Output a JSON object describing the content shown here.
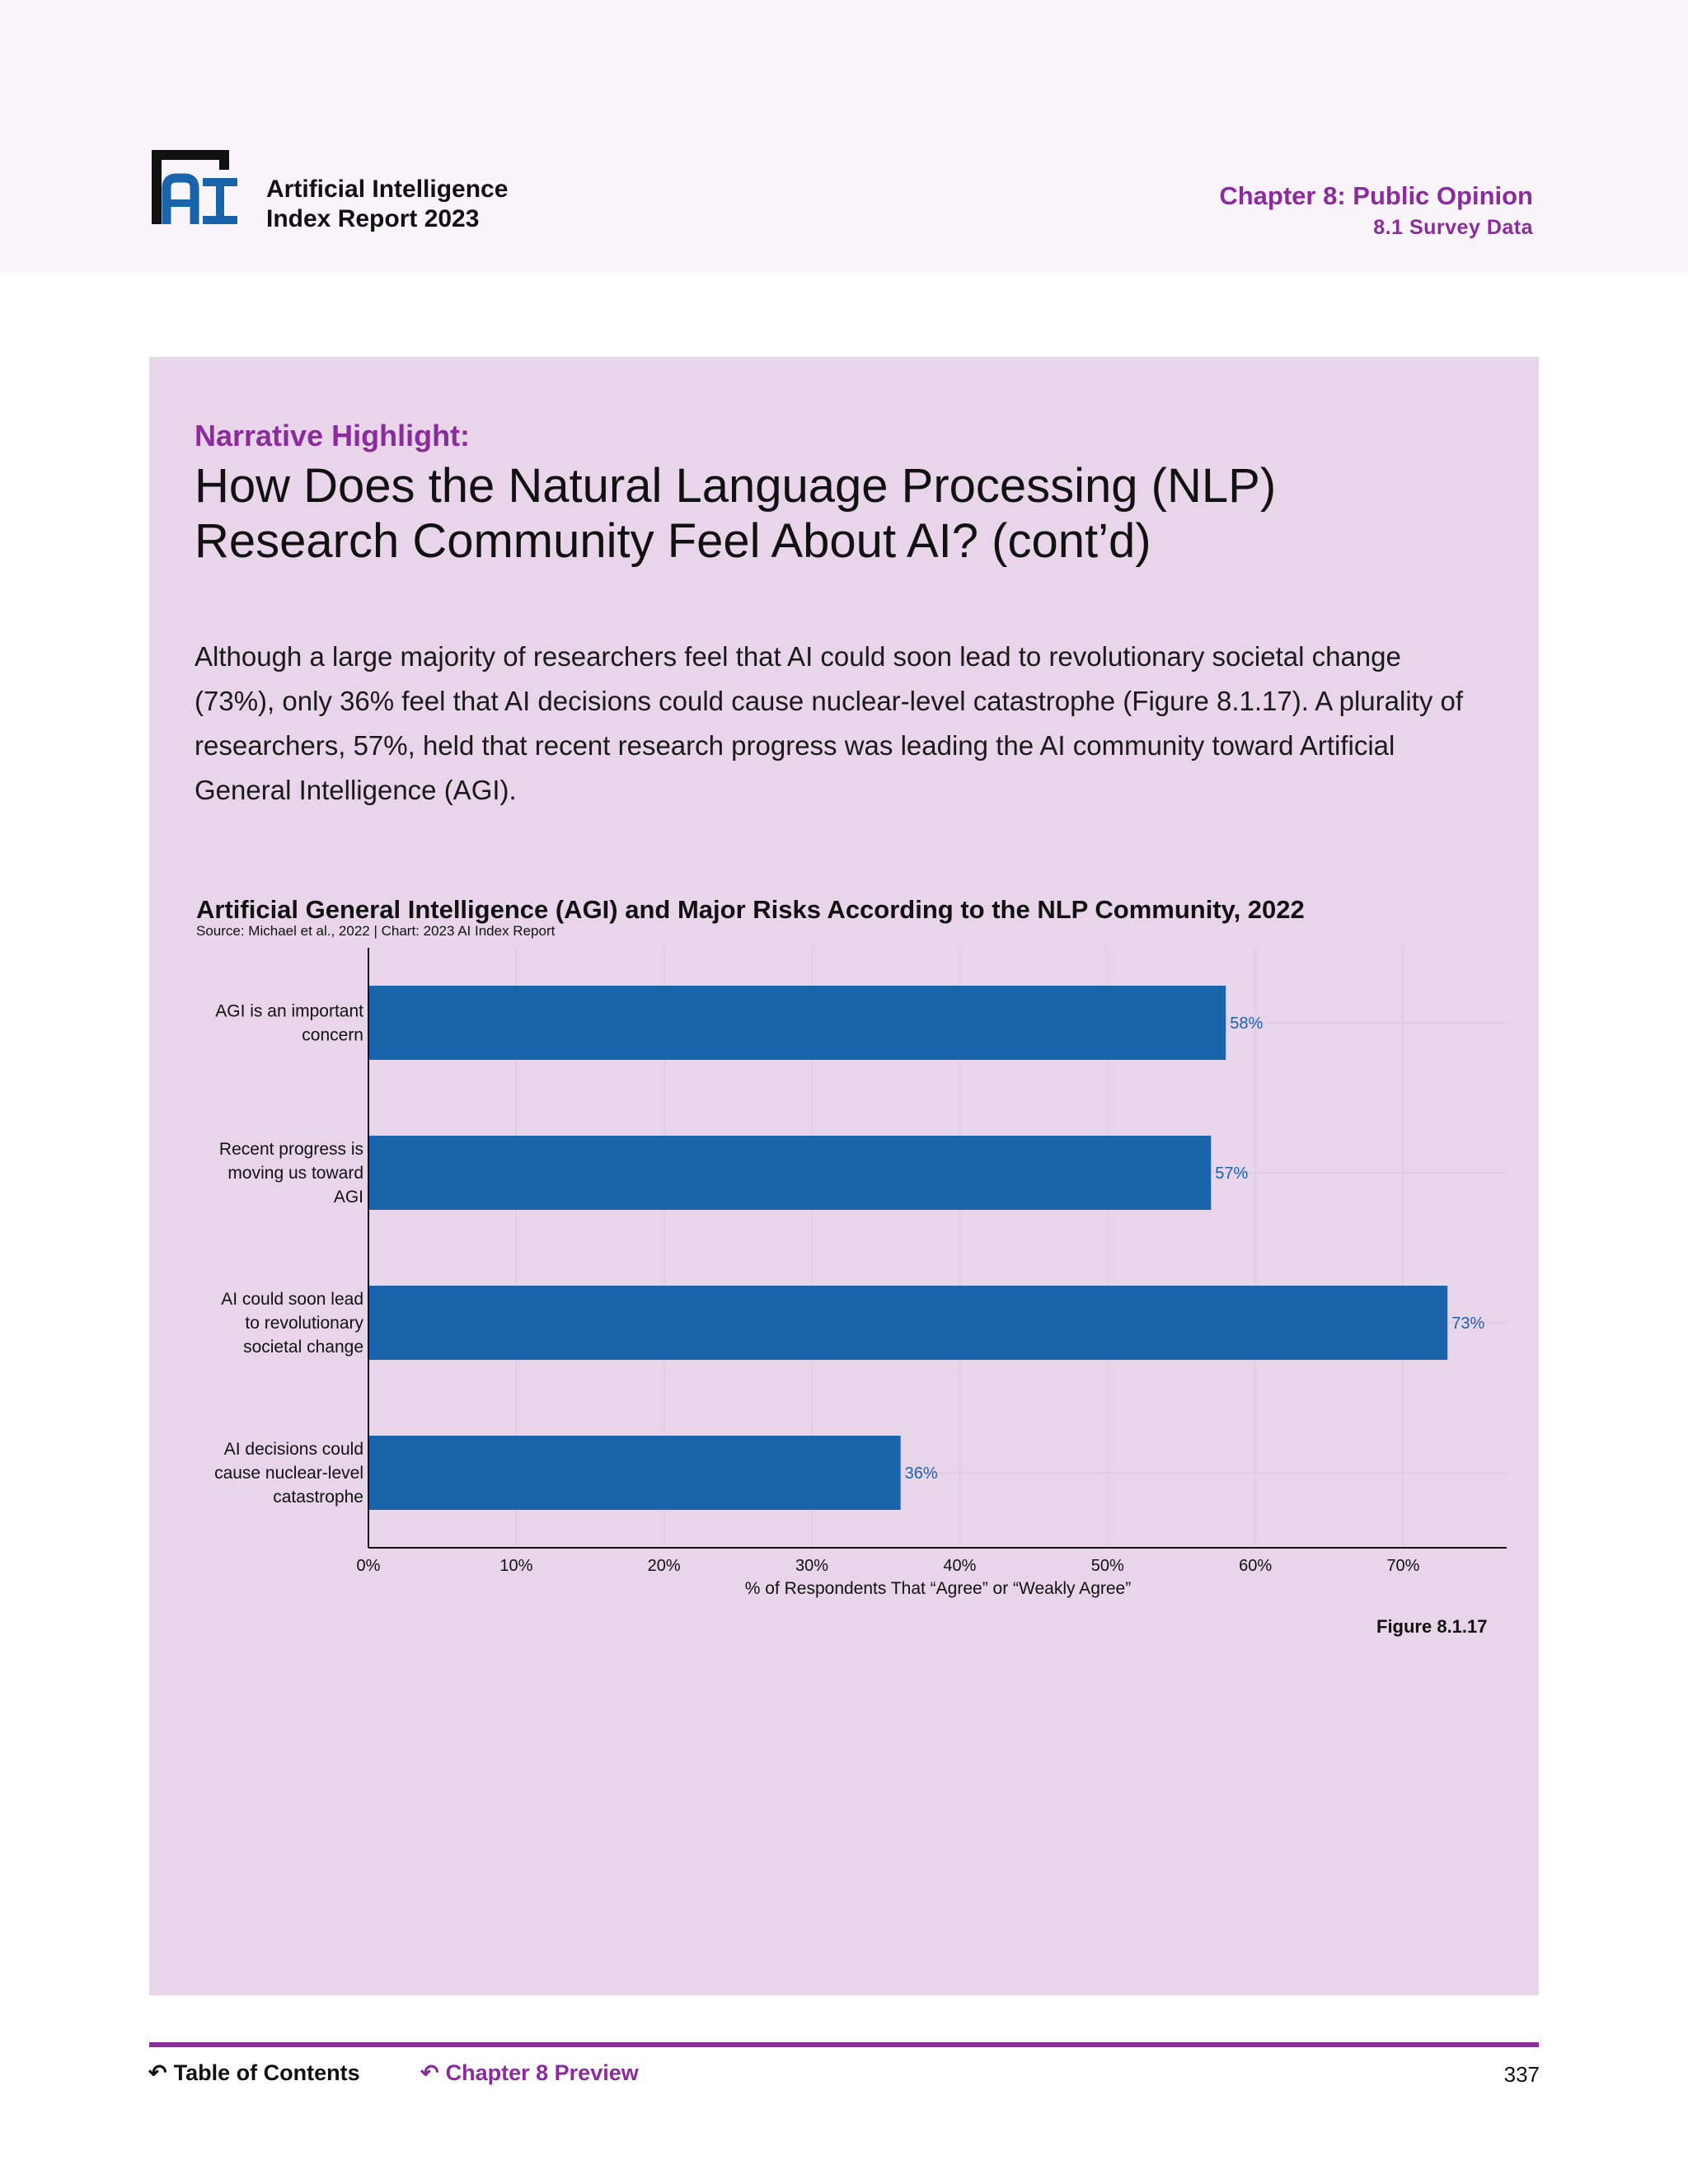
{
  "header": {
    "brand_line1": "Artificial Intelligence",
    "brand_line2": "Index Report 2023",
    "chapter": "Chapter 8: Public Opinion",
    "section": "8.1 Survey Data"
  },
  "highlight": {
    "eyebrow": "Narrative Highlight:",
    "headline_line1": "How Does the Natural Language Processing (NLP)",
    "headline_line2": "Research Community Feel About AI? (cont’d)",
    "body": "Although a large majority of researchers feel that AI could soon lead to revolutionary societal change (73%), only 36% feel that AI decisions could cause nuclear-level catastrophe (Figure 8.1.17). A plurality of researchers, 57%, held that recent research progress was leading the AI community toward Artificial General Intelligence (AGI)."
  },
  "chart_data": {
    "type": "bar",
    "orientation": "horizontal",
    "title": "Artificial General Intelligence (AGI) and Major Risks According to the NLP Community, 2022",
    "source": "Source: Michael et al., 2022 | Chart: 2023 AI Index Report",
    "categories": [
      [
        "AGI is an important",
        "concern"
      ],
      [
        "Recent progress is",
        "moving us toward",
        "AGI"
      ],
      [
        "AI could soon lead",
        "to revolutionary",
        "societal change"
      ],
      [
        "AI decisions could",
        "cause nuclear-level",
        "catastrophe"
      ]
    ],
    "values": [
      58,
      57,
      73,
      36
    ],
    "value_labels": [
      "58%",
      "57%",
      "73%",
      "36%"
    ],
    "xlabel": "% of Respondents That “Agree” or “Weakly Agree”",
    "ylabel": "",
    "xticks": [
      "0%",
      "10%",
      "20%",
      "30%",
      "40%",
      "50%",
      "60%",
      "70%"
    ],
    "xlim": [
      0,
      77
    ],
    "grid": true,
    "bar_color": "#1964aa",
    "label_color": "#1964aa"
  },
  "figure_label": "Figure 8.1.17",
  "footer": {
    "toc": "Table of Contents",
    "preview": "Chapter 8 Preview",
    "page": "337"
  },
  "colors": {
    "accent": "#8b2c9c",
    "panel": "#e8d5ea",
    "header_band": "#f8f4f9"
  }
}
